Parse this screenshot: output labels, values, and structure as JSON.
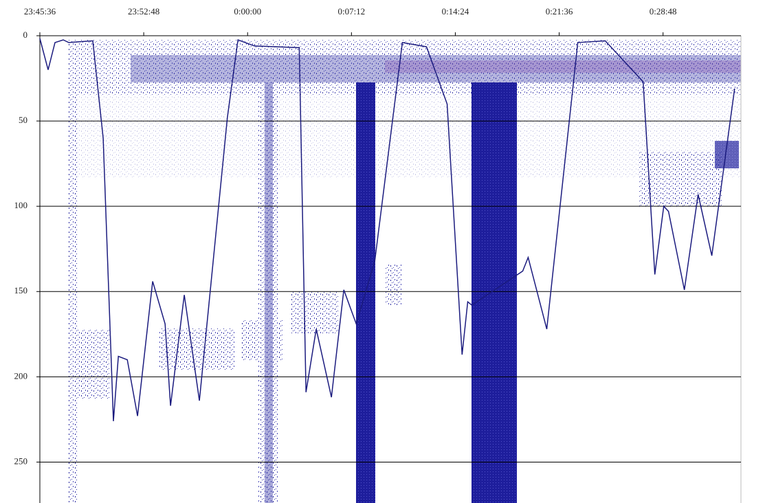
{
  "chart_data": {
    "type": "line",
    "x": [
      0,
      0.57,
      1.05,
      1.62,
      2,
      3.67,
      4.39,
      5.1,
      5.44,
      6.06,
      6.77,
      7.82,
      8.68,
      9.06,
      10.01,
      11.06,
      13,
      13.73,
      14.88,
      17.98,
      18.45,
      19.16,
      20.21,
      21.07,
      21.93,
      23.22,
      25.13,
      26.8,
      28.23,
      29.27,
      29.66,
      29.94,
      33.47,
      33.85,
      35.14,
      37.29,
      39.19,
      41.82,
      42.63,
      43.25,
      43.58,
      44.68,
      45.63,
      46.58,
      48.16
    ],
    "values": [
      1.6,
      20,
      4,
      2.4,
      4,
      3,
      60,
      226,
      188,
      190,
      223,
      144,
      169,
      217,
      152,
      214,
      48,
      2.4,
      6,
      7,
      209,
      172,
      212,
      149,
      169,
      132,
      4,
      6.5,
      40,
      187,
      156,
      158,
      138,
      130,
      172,
      4,
      3,
      27,
      140,
      100,
      103,
      149,
      93,
      129,
      31
    ],
    "color": "#1a1a7e",
    "xlim": [
      0,
      48.6
    ],
    "xticks": [
      {
        "value": 0,
        "label": "23:45:36"
      },
      {
        "value": 7.2,
        "label": "23:52:48"
      },
      {
        "value": 14.4,
        "label": "0:00:00"
      },
      {
        "value": 21.6,
        "label": "0:07:12"
      },
      {
        "value": 28.8,
        "label": "0:14:24"
      },
      {
        "value": 36,
        "label": "0:21:36"
      },
      {
        "value": 43.2,
        "label": "0:28:48"
      }
    ],
    "ylim": [
      0,
      274
    ],
    "yticks": [
      0,
      50,
      100,
      150,
      200,
      250
    ],
    "y_inverted": true,
    "grid": true
  }
}
